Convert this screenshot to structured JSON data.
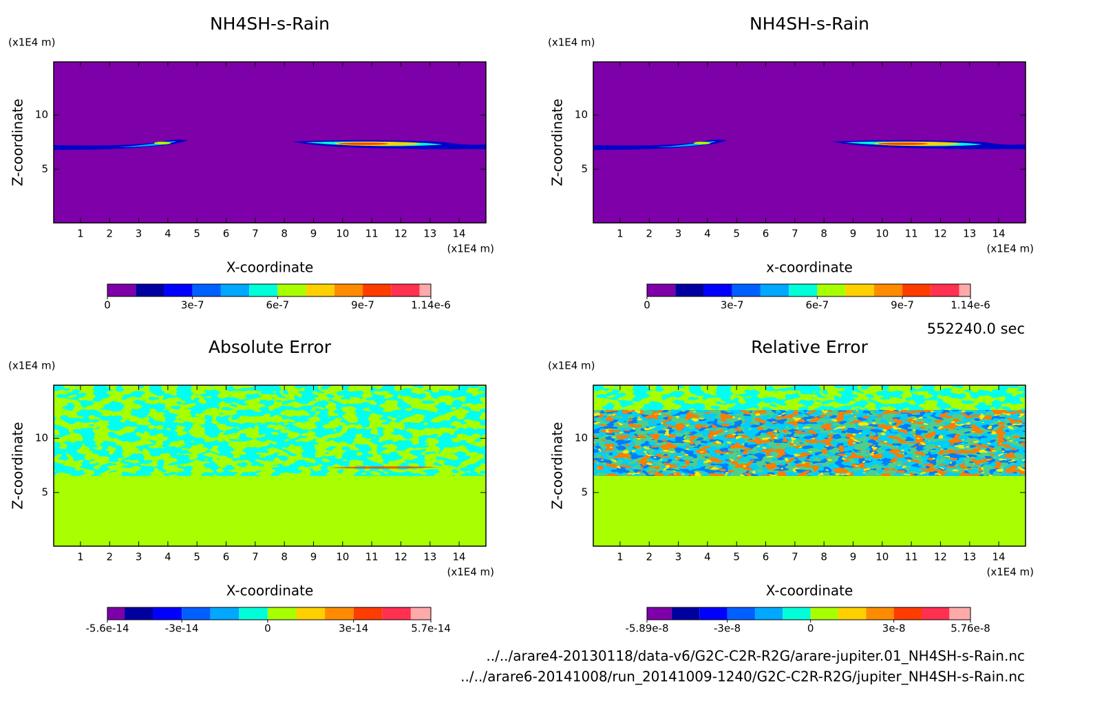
{
  "chart_data": [
    {
      "type": "contour",
      "title": "NH4SH-s-Rain",
      "xlabel": "X-coordinate",
      "ylabel": "Z-coordinate",
      "xunit": "(x1E4 m)",
      "yunit": "(x1E4 m)",
      "xlim": [
        0.08,
        14.92
      ],
      "ylim": [
        0.05,
        14.9
      ],
      "xticks": [
        1,
        2,
        3,
        4,
        5,
        6,
        7,
        8,
        9,
        10,
        11,
        12,
        13,
        14
      ],
      "yticks": [
        5,
        10
      ],
      "colorbar": {
        "levels": [
          0,
          1e-07,
          2e-07,
          3e-07,
          4e-07,
          5e-07,
          6e-07,
          7e-07,
          8e-07,
          9e-07,
          1e-06,
          1.1e-06,
          1.14e-06
        ],
        "colors": [
          "#7d00a8",
          "#0000a0",
          "#0000ff",
          "#0060ff",
          "#00a8ff",
          "#00ffd8",
          "#a8ff00",
          "#ffd000",
          "#ff8c00",
          "#ff3c00",
          "#ff3050",
          "#ffaaaa"
        ],
        "ticks": [
          0,
          3e-07,
          6e-07,
          9e-07,
          {
            "value": 1.14e-06,
            "label": "1.14e-6"
          }
        ]
      }
    },
    {
      "type": "contour",
      "title": "NH4SH-s-Rain",
      "xlabel": "x-coordinate",
      "ylabel": "Z-coordinate",
      "xunit": "(x1E4 m)",
      "yunit": "(x1E4 m)",
      "xlim": [
        0.08,
        14.92
      ],
      "ylim": [
        0.05,
        14.9
      ],
      "xticks": [
        1,
        2,
        3,
        4,
        5,
        6,
        7,
        8,
        9,
        10,
        11,
        12,
        13,
        14
      ],
      "yticks": [
        5,
        10
      ],
      "colorbar": {
        "levels": [
          0,
          1e-07,
          2e-07,
          3e-07,
          4e-07,
          5e-07,
          6e-07,
          7e-07,
          8e-07,
          9e-07,
          1e-06,
          1.1e-06,
          1.14e-06
        ],
        "colors": [
          "#7d00a8",
          "#0000a0",
          "#0000ff",
          "#0060ff",
          "#00a8ff",
          "#00ffd8",
          "#a8ff00",
          "#ffd000",
          "#ff8c00",
          "#ff3c00",
          "#ff3050",
          "#ffaaaa"
        ],
        "ticks": [
          0,
          3e-07,
          6e-07,
          9e-07,
          {
            "value": 1.14e-06,
            "label": "1.14e-6"
          }
        ]
      }
    },
    {
      "type": "contour",
      "title": "Absolute Error",
      "xlabel": "X-coordinate",
      "ylabel": "Z-coordinate",
      "xunit": "(x1E4 m)",
      "yunit": "(x1E4 m)",
      "xlim": [
        0.08,
        14.92
      ],
      "ylim": [
        0.05,
        14.9
      ],
      "xticks": [
        1,
        2,
        3,
        4,
        5,
        6,
        7,
        8,
        9,
        10,
        11,
        12,
        13,
        14
      ],
      "yticks": [
        5,
        10
      ],
      "colorbar": {
        "levels": [
          -5.6e-14,
          -5e-14,
          -4e-14,
          -3e-14,
          -2e-14,
          -1e-14,
          0,
          1e-14,
          2e-14,
          3e-14,
          4e-14,
          5e-14,
          5.7e-14
        ],
        "colors": [
          "#7d00a8",
          "#0000a0",
          "#0000ff",
          "#0060ff",
          "#00a8ff",
          "#00ffd8",
          "#a8ff00",
          "#ffd000",
          "#ff8c00",
          "#ff3c00",
          "#ff3050",
          "#ffaaaa"
        ],
        "ticks": [
          -5.6e-14,
          -3e-14,
          0,
          3e-14,
          5.7e-14
        ]
      }
    },
    {
      "type": "contour",
      "title": "Relative Error",
      "xlabel": "X-coordinate",
      "ylabel": "Z-coordinate",
      "xunit": "(x1E4 m)",
      "yunit": "(x1E4 m)",
      "xlim": [
        0.08,
        14.92
      ],
      "ylim": [
        0.05,
        14.9
      ],
      "xticks": [
        1,
        2,
        3,
        4,
        5,
        6,
        7,
        8,
        9,
        10,
        11,
        12,
        13,
        14
      ],
      "yticks": [
        5,
        10
      ],
      "colorbar": {
        "levels": [
          -5.89e-08,
          -5e-08,
          -4e-08,
          -3e-08,
          -2e-08,
          -1e-08,
          0,
          1e-08,
          2e-08,
          3e-08,
          4e-08,
          5e-08,
          5.76e-08
        ],
        "colors": [
          "#7d00a8",
          "#0000a0",
          "#0000ff",
          "#0060ff",
          "#00a8ff",
          "#00ffd8",
          "#a8ff00",
          "#ffd000",
          "#ff8c00",
          "#ff3c00",
          "#ff3050",
          "#ffaaaa"
        ],
        "ticks": [
          -5.89e-08,
          -3e-08,
          0,
          3e-08,
          5.76e-08
        ]
      }
    }
  ],
  "time": "552240.0 sec",
  "files": [
    "../../arare4-20130118/data-v6/G2C-C2R-R2G/arare-jupiter.01_NH4SH-s-Rain.nc",
    "../../arare6-20141008/run_20141009-1240/G2C-C2R-R2G/jupiter_NH4SH-s-Rain.nc"
  ]
}
